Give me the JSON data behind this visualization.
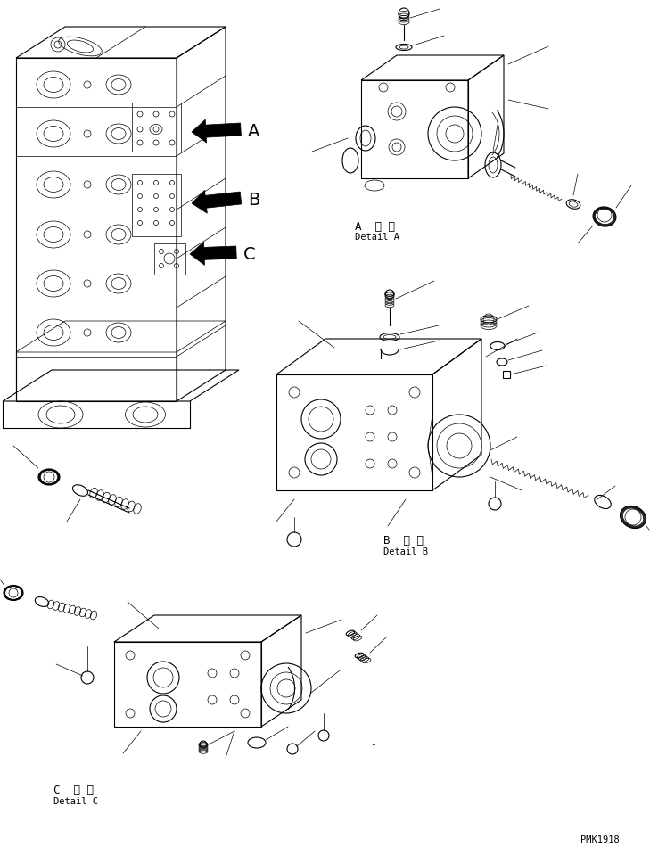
{
  "background_color": "#ffffff",
  "line_color": "#000000",
  "figure_width": 7.29,
  "figure_height": 9.5,
  "dpi": 100,
  "watermark": "PMK1918",
  "label_A_jp": "A 詳細",
  "label_A_en": "Detail A",
  "label_B_jp": "B 詳細",
  "label_B_en": "Detail B",
  "label_C_jp": "C 詳細",
  "label_C_en": "Detail C"
}
